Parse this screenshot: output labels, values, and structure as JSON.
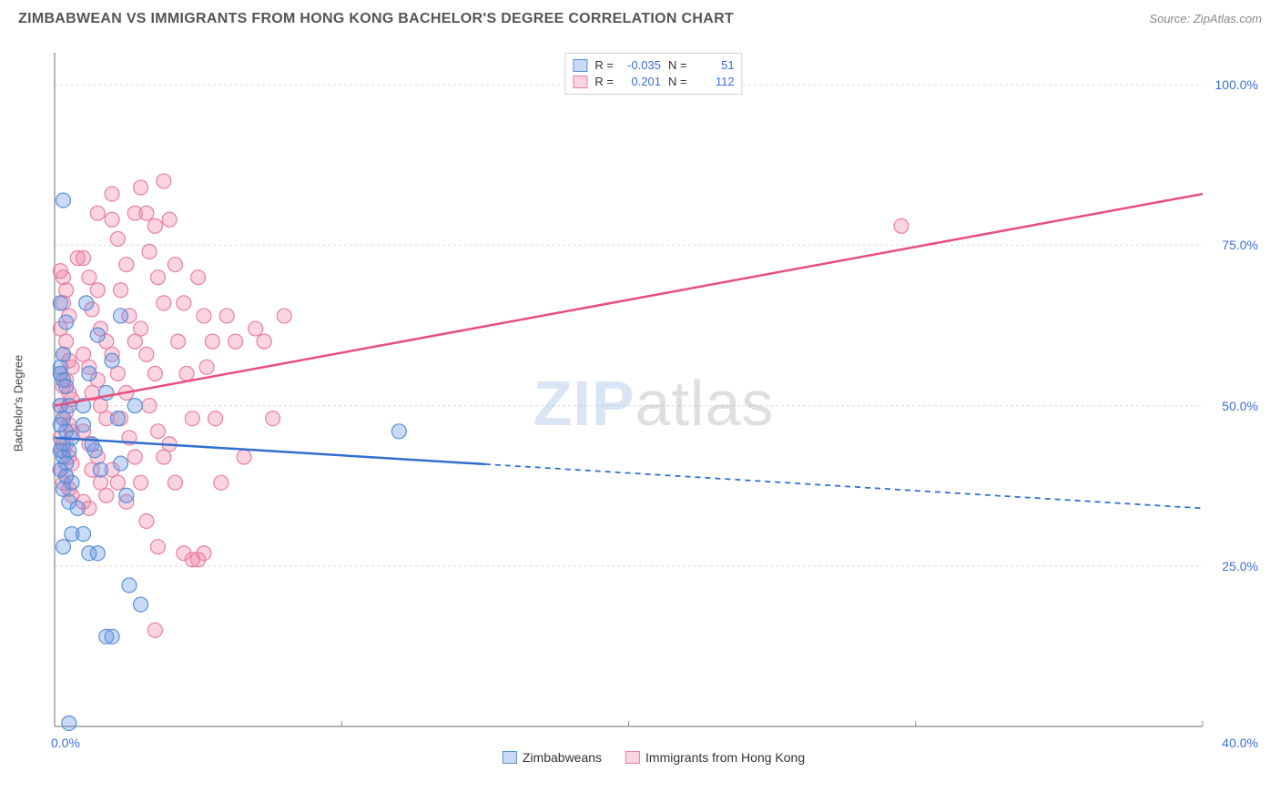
{
  "title": "ZIMBABWEAN VS IMMIGRANTS FROM HONG KONG BACHELOR'S DEGREE CORRELATION CHART",
  "source_label": "Source:",
  "source_value": "ZipAtlas.com",
  "y_axis_label": "Bachelor's Degree",
  "watermark": {
    "part1": "ZIP",
    "part2": "atlas"
  },
  "chart": {
    "type": "scatter-with-regression",
    "background_color": "#ffffff",
    "grid_color": "#dcdcdc",
    "axis_line_color": "#888888",
    "tick_label_color": "#3a6fd8",
    "x_axis": {
      "min": 0,
      "max": 40,
      "ticks": [
        0,
        10,
        20,
        30,
        40
      ],
      "tick_labels": [
        "0.0%",
        "",
        "",
        "",
        "40.0%"
      ],
      "show_grid": true
    },
    "y_axis": {
      "min": 0,
      "max": 105,
      "ticks": [
        25,
        50,
        75,
        100
      ],
      "tick_labels": [
        "25.0%",
        "50.0%",
        "75.0%",
        "100.0%"
      ],
      "show_grid": true
    },
    "series": [
      {
        "name": "Zimbabweans",
        "marker_color_fill": "rgba(100,150,230,0.35)",
        "marker_color_stroke": "#5a8fd6",
        "marker_radius": 8,
        "line_color": "#2e6fd0",
        "line_width": 2.5,
        "line_solid_until_x": 15,
        "line_dash": "6,5",
        "regression": {
          "y_at_x0": 45,
          "y_at_xmax": 34
        },
        "R": -0.035,
        "N": 51,
        "points": [
          [
            0.3,
            82
          ],
          [
            0.2,
            66
          ],
          [
            0.4,
            63
          ],
          [
            0.3,
            58
          ],
          [
            0.2,
            56
          ],
          [
            0.2,
            55
          ],
          [
            0.3,
            54
          ],
          [
            0.4,
            53
          ],
          [
            0.2,
            50
          ],
          [
            0.5,
            50
          ],
          [
            0.3,
            48
          ],
          [
            0.2,
            47
          ],
          [
            0.4,
            46
          ],
          [
            0.6,
            45
          ],
          [
            0.3,
            44
          ],
          [
            0.2,
            43
          ],
          [
            0.5,
            43
          ],
          [
            0.3,
            42
          ],
          [
            0.4,
            41
          ],
          [
            0.2,
            40
          ],
          [
            0.4,
            39
          ],
          [
            0.6,
            38
          ],
          [
            0.3,
            37
          ],
          [
            1.0,
            50
          ],
          [
            1.2,
            55
          ],
          [
            1.0,
            47
          ],
          [
            1.3,
            44
          ],
          [
            1.5,
            61
          ],
          [
            1.4,
            43
          ],
          [
            1.8,
            52
          ],
          [
            1.6,
            40
          ],
          [
            0.5,
            35
          ],
          [
            0.8,
            34
          ],
          [
            0.6,
            30
          ],
          [
            1.0,
            30
          ],
          [
            1.2,
            27
          ],
          [
            1.5,
            27
          ],
          [
            2.0,
            57
          ],
          [
            2.2,
            48
          ],
          [
            2.3,
            41
          ],
          [
            2.5,
            36
          ],
          [
            2.6,
            22
          ],
          [
            3.0,
            19
          ],
          [
            1.8,
            14
          ],
          [
            2.0,
            14
          ],
          [
            0.3,
            28
          ],
          [
            0.5,
            0.5
          ],
          [
            12.0,
            46
          ],
          [
            1.1,
            66
          ],
          [
            2.8,
            50
          ],
          [
            2.3,
            64
          ]
        ]
      },
      {
        "name": "Immigrants from Hong Kong",
        "marker_color_fill": "rgba(240,120,160,0.32)",
        "marker_color_stroke": "#e87fa4",
        "marker_radius": 8,
        "line_color": "#e94e7b",
        "line_width": 2.5,
        "line_solid_until_x": 40,
        "line_dash": "",
        "regression": {
          "y_at_x0": 50,
          "y_at_xmax": 83
        },
        "R": 0.201,
        "N": 112,
        "points": [
          [
            0.2,
            71
          ],
          [
            0.3,
            70
          ],
          [
            0.4,
            68
          ],
          [
            0.3,
            66
          ],
          [
            0.5,
            64
          ],
          [
            0.2,
            62
          ],
          [
            0.4,
            60
          ],
          [
            0.3,
            58
          ],
          [
            0.5,
            57
          ],
          [
            0.6,
            56
          ],
          [
            0.2,
            55
          ],
          [
            0.4,
            54
          ],
          [
            0.3,
            53
          ],
          [
            0.5,
            52
          ],
          [
            0.6,
            51
          ],
          [
            0.2,
            50
          ],
          [
            0.4,
            49
          ],
          [
            0.3,
            48
          ],
          [
            0.5,
            47
          ],
          [
            0.6,
            46
          ],
          [
            0.2,
            45
          ],
          [
            0.4,
            44
          ],
          [
            0.3,
            43
          ],
          [
            0.5,
            42
          ],
          [
            0.6,
            41
          ],
          [
            0.2,
            40
          ],
          [
            0.4,
            39
          ],
          [
            0.3,
            38
          ],
          [
            0.5,
            37
          ],
          [
            0.6,
            36
          ],
          [
            1.0,
            73
          ],
          [
            1.2,
            70
          ],
          [
            1.5,
            68
          ],
          [
            1.3,
            65
          ],
          [
            1.6,
            62
          ],
          [
            1.8,
            60
          ],
          [
            1.0,
            58
          ],
          [
            1.2,
            56
          ],
          [
            1.5,
            54
          ],
          [
            1.3,
            52
          ],
          [
            1.6,
            50
          ],
          [
            1.8,
            48
          ],
          [
            1.0,
            46
          ],
          [
            1.2,
            44
          ],
          [
            1.5,
            42
          ],
          [
            1.3,
            40
          ],
          [
            1.6,
            38
          ],
          [
            1.8,
            36
          ],
          [
            1.0,
            35
          ],
          [
            1.2,
            34
          ],
          [
            2.0,
            79
          ],
          [
            2.2,
            76
          ],
          [
            2.5,
            72
          ],
          [
            2.3,
            68
          ],
          [
            2.6,
            64
          ],
          [
            2.8,
            60
          ],
          [
            2.0,
            58
          ],
          [
            2.2,
            55
          ],
          [
            2.5,
            52
          ],
          [
            2.3,
            48
          ],
          [
            2.6,
            45
          ],
          [
            2.8,
            42
          ],
          [
            2.0,
            40
          ],
          [
            2.2,
            38
          ],
          [
            2.5,
            35
          ],
          [
            3.0,
            84
          ],
          [
            3.2,
            80
          ],
          [
            3.5,
            78
          ],
          [
            3.3,
            74
          ],
          [
            3.6,
            70
          ],
          [
            3.8,
            66
          ],
          [
            3.0,
            62
          ],
          [
            3.2,
            58
          ],
          [
            3.5,
            55
          ],
          [
            3.3,
            50
          ],
          [
            3.6,
            46
          ],
          [
            3.8,
            42
          ],
          [
            3.0,
            38
          ],
          [
            3.2,
            32
          ],
          [
            3.5,
            15
          ],
          [
            4.0,
            79
          ],
          [
            4.2,
            72
          ],
          [
            4.5,
            66
          ],
          [
            4.3,
            60
          ],
          [
            4.6,
            55
          ],
          [
            4.8,
            48
          ],
          [
            4.0,
            44
          ],
          [
            4.2,
            38
          ],
          [
            4.5,
            27
          ],
          [
            5.0,
            70
          ],
          [
            5.2,
            64
          ],
          [
            5.5,
            60
          ],
          [
            5.3,
            56
          ],
          [
            5.6,
            48
          ],
          [
            5.8,
            38
          ],
          [
            5.0,
            26
          ],
          [
            5.2,
            27
          ],
          [
            6.0,
            64
          ],
          [
            6.3,
            60
          ],
          [
            6.6,
            42
          ],
          [
            7.0,
            62
          ],
          [
            7.3,
            60
          ],
          [
            7.6,
            48
          ],
          [
            8.0,
            64
          ],
          [
            4.8,
            26
          ],
          [
            3.6,
            28
          ],
          [
            1.5,
            80
          ],
          [
            2.8,
            80
          ],
          [
            2.0,
            83
          ],
          [
            3.8,
            85
          ],
          [
            0.8,
            73
          ],
          [
            29.5,
            78
          ]
        ]
      }
    ],
    "legend_top": {
      "border_color": "#d0d0d0",
      "labels": {
        "R": "R =",
        "N": "N ="
      }
    },
    "legend_bottom": {
      "items": [
        "Zimbabweans",
        "Immigrants from Hong Kong"
      ]
    }
  }
}
